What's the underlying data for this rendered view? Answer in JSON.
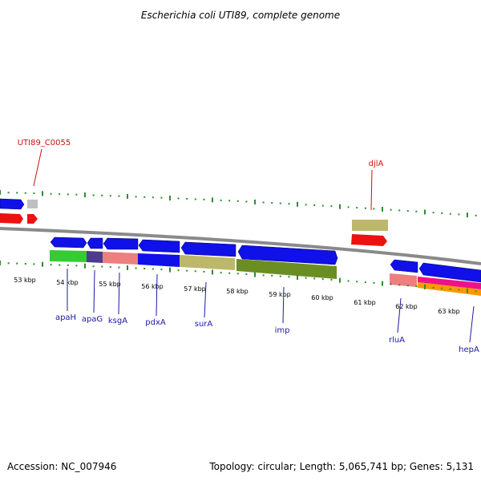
{
  "title": "Escherichia coli UTI89, complete genome",
  "footer": {
    "accession": "Accession: NC_007946",
    "summary": "Topology: circular; Length: 5,065,741 bp; Genes: 5,131"
  },
  "colors": {
    "forward_arrow": "#1010e8",
    "reverse_arrow": "#ee1111",
    "backbone": "#8a8a8a",
    "tick": "#2e8b2e",
    "label_blue": "#1a1aa6",
    "label_red": "#cc1111"
  },
  "scale_labels": [
    "53 kbp",
    "54 kbp",
    "55 kbp",
    "56 kbp",
    "57 kbp",
    "58 kbp",
    "59 kbp",
    "60 kbp",
    "61 kbp",
    "62 kbp",
    "63 kbp"
  ],
  "gene_labels": {
    "UTI89_C0055": "UTI89_C0055",
    "djlA": "djlA",
    "apaH": "apaH",
    "apaG": "apaG",
    "ksgA": "ksgA",
    "pdxA": "pdxA",
    "surA": "surA",
    "imp": "imp",
    "rluA": "rluA",
    "hepA": "hepA"
  }
}
